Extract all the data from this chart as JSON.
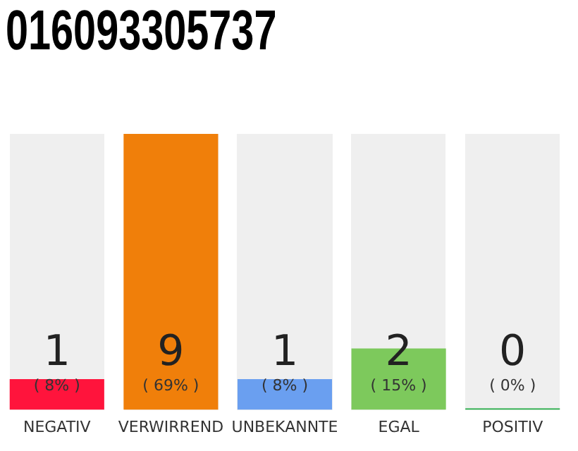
{
  "chart_data": {
    "type": "bar",
    "title": "016093305737",
    "categories": [
      "NEGATIV",
      "VERWIRREND",
      "UNBEKANNTE",
      "EGAL",
      "POSITIV"
    ],
    "values": [
      1,
      9,
      1,
      2,
      0
    ],
    "colors": [
      "#ff143c",
      "#f07f0a",
      "#6a9ff0",
      "#7dc95c",
      "#22aa44"
    ],
    "ylim": [
      0,
      9
    ],
    "tick_labels": "x",
    "grid": false,
    "legend": false,
    "data_labels": true,
    "annotations": [
      "( 8% )",
      "( 69% )",
      "( 8% )",
      "( 15% )",
      "( 0% )"
    ]
  }
}
